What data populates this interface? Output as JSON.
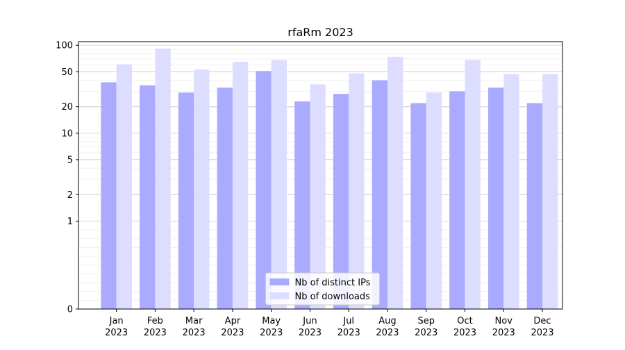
{
  "chart_data": {
    "type": "bar",
    "title": "rfaRm 2023",
    "xlabel": "",
    "ylabel": "",
    "y_scale": "symlog",
    "ylim": [
      0,
      110
    ],
    "y_ticks": [
      0,
      1,
      2,
      5,
      10,
      20,
      50,
      100
    ],
    "y_tick_labels": [
      "0",
      "1",
      "2",
      "5",
      "10",
      "20",
      "50",
      "100"
    ],
    "categories": [
      "Jan\n2023",
      "Feb\n2023",
      "Mar\n2023",
      "Apr\n2023",
      "May\n2023",
      "Jun\n2023",
      "Jul\n2023",
      "Aug\n2023",
      "Sep\n2023",
      "Oct\n2023",
      "Nov\n2023",
      "Dec\n2023"
    ],
    "series": [
      {
        "name": "Nb of distinct IPs",
        "color": "#aaaaff",
        "values": [
          38,
          35,
          29,
          33,
          51,
          23,
          28,
          40,
          22,
          30,
          33,
          22
        ]
      },
      {
        "name": "Nb of downloads",
        "color": "#ddddff",
        "values": [
          61,
          92,
          53,
          65,
          68,
          36,
          48,
          74,
          29,
          68,
          47,
          47
        ]
      }
    ],
    "legend": {
      "position": "lower-center"
    },
    "grid": {
      "major": true,
      "minor": true
    }
  }
}
